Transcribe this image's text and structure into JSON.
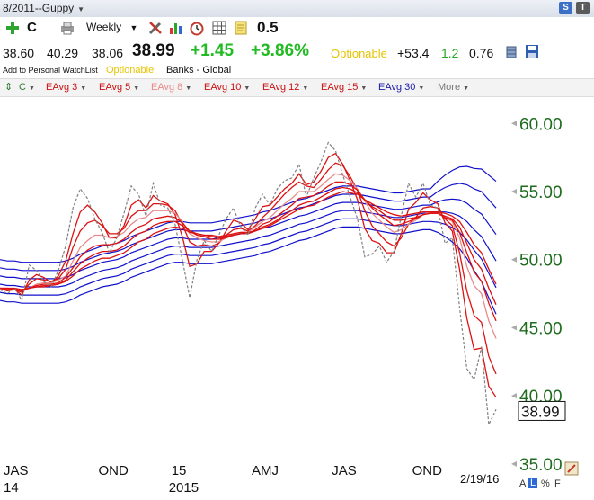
{
  "window": {
    "title": "8/2011--Guppy",
    "buttons": [
      {
        "label": "S",
        "color": "#3c6fc6"
      },
      {
        "label": "T",
        "color": "#5b5b5b"
      }
    ]
  },
  "toolbar": {
    "symbol": "C",
    "period": "Weekly",
    "value": "0.5"
  },
  "quote": {
    "open": "38.60",
    "high": "40.29",
    "low": "38.06",
    "last": "38.99",
    "change": "+1.45",
    "change_pct": "+3.86%",
    "optionable": "Optionable",
    "val1": "+53.4",
    "val2": "1.2",
    "val3": "0.76"
  },
  "subline": {
    "watchlist": "Add to Personal WatchList",
    "optionable": "Optionable",
    "sector": "Banks - Global"
  },
  "legend": [
    {
      "label": "C",
      "color": "#2b7a2b"
    },
    {
      "label": "EAvg 3",
      "color": "#cc1111"
    },
    {
      "label": "EAvg 5",
      "color": "#cc1111"
    },
    {
      "label": "EAvg 8",
      "color": "#e88a8a"
    },
    {
      "label": "EAvg 10",
      "color": "#cc1111"
    },
    {
      "label": "EAvg 12",
      "color": "#cc1111"
    },
    {
      "label": "EAvg 15",
      "color": "#cc1111"
    },
    {
      "label": "EAvg 30",
      "color": "#1a1aaa"
    },
    {
      "label": "More",
      "color": "#777777"
    }
  ],
  "colors": {
    "price": "#808080",
    "short": "#dd1111",
    "long": "#1111cc",
    "axis_text": "#1d6b1d"
  },
  "chart_data": {
    "type": "line",
    "ylim": [
      34,
      62
    ],
    "y_ticks": [
      35,
      40,
      45,
      50,
      55,
      60
    ],
    "y_tick_labels": [
      "35.00",
      "40.00",
      "45.00",
      "50.00",
      "55.00",
      "60.00"
    ],
    "last_price_label": "38.99",
    "last_price": 38.99,
    "x_ticks": [
      {
        "label": "JAS",
        "sub": "14",
        "week": 0
      },
      {
        "label": "OND",
        "sub": "",
        "week": 13
      },
      {
        "label": "15",
        "sub": "2015",
        "week": 23
      },
      {
        "label": "AMJ",
        "sub": "",
        "week": 34
      },
      {
        "label": "JAS",
        "sub": "",
        "week": 45
      },
      {
        "label": "OND",
        "sub": "",
        "week": 56
      }
    ],
    "date_label": "2/19/16",
    "price": [
      47.8,
      47.5,
      47.9,
      47.0,
      49.6,
      49.2,
      48.4,
      48.0,
      49.2,
      51.0,
      53.8,
      55.2,
      54.5,
      53.0,
      52.0,
      50.5,
      51.6,
      53.4,
      55.4,
      54.8,
      53.2,
      55.6,
      54.0,
      53.8,
      52.6,
      50.0,
      47.2,
      50.0,
      51.4,
      50.6,
      51.8,
      53.0,
      53.8,
      52.4,
      51.8,
      53.8,
      54.8,
      54.0,
      55.2,
      55.8,
      56.0,
      57.0,
      54.6,
      56.0,
      57.2,
      58.6,
      58.0,
      56.2,
      54.6,
      53.0,
      50.2,
      50.4,
      51.0,
      49.8,
      50.6,
      53.2,
      55.6,
      54.6,
      55.6,
      54.0,
      53.8,
      51.2,
      51.6,
      46.5,
      42.0,
      41.2,
      43.6,
      37.9,
      39.0
    ],
    "series": [
      {
        "name": "EAvg 3",
        "kind": "short",
        "values": [
          47.9,
          47.7,
          47.8,
          47.4,
          48.5,
          48.9,
          48.7,
          48.3,
          48.8,
          49.9,
          51.9,
          53.5,
          54.0,
          53.5,
          52.7,
          51.6,
          51.6,
          52.5,
          54.0,
          54.4,
          53.8,
          54.7,
          54.3,
          54.1,
          53.3,
          51.7,
          49.5,
          49.7,
          50.6,
          50.6,
          51.2,
          52.1,
          52.9,
          52.7,
          52.2,
          53.0,
          53.9,
          54.0,
          54.6,
          55.2,
          55.6,
          56.3,
          55.5,
          55.7,
          56.5,
          57.5,
          57.8,
          57.0,
          55.8,
          54.4,
          52.3,
          51.4,
          51.2,
          50.5,
          50.5,
          51.9,
          53.7,
          54.2,
          54.9,
          54.4,
          54.1,
          52.7,
          52.1,
          49.3,
          45.7,
          43.4,
          43.5,
          40.7,
          39.9
        ]
      },
      {
        "name": "EAvg 5",
        "kind": "short",
        "values": [
          47.9,
          47.8,
          47.8,
          47.6,
          48.2,
          48.6,
          48.5,
          48.4,
          48.6,
          49.3,
          50.9,
          52.1,
          52.7,
          52.9,
          52.5,
          51.9,
          51.9,
          52.3,
          53.2,
          53.6,
          53.6,
          54.1,
          54.1,
          54.0,
          53.6,
          52.6,
          51.3,
          51.0,
          51.1,
          51.0,
          51.2,
          51.8,
          52.2,
          52.3,
          52.1,
          52.5,
          53.1,
          53.6,
          54.2,
          54.8,
          55.3,
          55.7,
          55.4,
          55.3,
          55.9,
          56.6,
          57.1,
          56.9,
          56.1,
          55.1,
          53.6,
          52.5,
          51.9,
          51.3,
          51.0,
          51.6,
          52.6,
          53.1,
          53.8,
          53.9,
          53.8,
          53.0,
          52.5,
          50.5,
          47.7,
          45.9,
          45.4,
          42.9,
          41.6
        ]
      },
      {
        "name": "EAvg 8",
        "kind": "short",
        "values": [
          47.9,
          47.8,
          47.8,
          47.7,
          47.9,
          48.2,
          48.3,
          48.3,
          48.5,
          48.8,
          49.9,
          50.9,
          51.4,
          51.8,
          51.8,
          51.6,
          51.7,
          52.0,
          52.6,
          53.0,
          53.1,
          53.6,
          53.6,
          53.6,
          53.4,
          52.8,
          51.9,
          51.6,
          51.4,
          51.3,
          51.3,
          51.6,
          51.9,
          52.0,
          52.0,
          52.4,
          52.8,
          53.1,
          53.6,
          54.1,
          54.5,
          55.0,
          55.0,
          55.0,
          55.4,
          55.9,
          56.3,
          56.2,
          55.8,
          55.2,
          54.3,
          53.4,
          52.9,
          52.4,
          52.0,
          52.2,
          52.6,
          52.9,
          53.3,
          53.5,
          53.5,
          53.1,
          52.8,
          51.6,
          49.5,
          48.1,
          47.5,
          45.5,
          44.2
        ]
      },
      {
        "name": "EAvg 10",
        "kind": "short",
        "values": [
          47.9,
          47.8,
          47.8,
          47.7,
          47.9,
          48.1,
          48.2,
          48.2,
          48.3,
          48.7,
          49.4,
          50.2,
          50.7,
          51.0,
          51.1,
          51.1,
          51.2,
          51.5,
          52.0,
          52.4,
          52.6,
          53.0,
          53.1,
          53.2,
          53.1,
          52.7,
          52.1,
          51.8,
          51.7,
          51.5,
          51.5,
          51.6,
          51.8,
          51.9,
          51.9,
          52.2,
          52.6,
          52.8,
          53.2,
          53.6,
          54.0,
          54.5,
          54.6,
          54.7,
          55.0,
          55.4,
          55.7,
          55.7,
          55.5,
          55.1,
          54.4,
          53.8,
          53.3,
          52.9,
          52.5,
          52.6,
          52.8,
          53.0,
          53.3,
          53.4,
          53.4,
          53.1,
          52.9,
          52.0,
          50.5,
          49.1,
          48.4,
          46.8,
          45.5
        ]
      },
      {
        "name": "EAvg 12",
        "kind": "short",
        "values": [
          47.9,
          47.9,
          47.8,
          47.8,
          47.9,
          48.0,
          48.1,
          48.1,
          48.2,
          48.5,
          49.1,
          49.7,
          50.1,
          50.4,
          50.6,
          50.6,
          50.7,
          51.0,
          51.5,
          51.9,
          52.1,
          52.5,
          52.7,
          52.8,
          52.8,
          52.5,
          52.1,
          51.9,
          51.8,
          51.7,
          51.6,
          51.7,
          51.8,
          51.9,
          51.9,
          52.1,
          52.4,
          52.6,
          52.9,
          53.3,
          53.6,
          54.0,
          54.2,
          54.3,
          54.6,
          54.9,
          55.2,
          55.3,
          55.2,
          54.9,
          54.4,
          53.9,
          53.6,
          53.2,
          52.9,
          52.9,
          53.0,
          53.1,
          53.3,
          53.4,
          53.4,
          53.2,
          53.0,
          52.4,
          51.2,
          50.0,
          49.3,
          47.9,
          46.7
        ]
      },
      {
        "name": "EAvg 15",
        "kind": "short",
        "values": [
          47.9,
          47.9,
          47.9,
          47.8,
          47.9,
          48.0,
          48.0,
          48.1,
          48.2,
          48.4,
          48.8,
          49.3,
          49.6,
          49.9,
          50.1,
          50.1,
          50.3,
          50.5,
          50.9,
          51.3,
          51.5,
          51.9,
          52.1,
          52.3,
          52.4,
          52.3,
          52.0,
          51.9,
          51.8,
          51.8,
          51.7,
          51.8,
          51.9,
          52.0,
          52.0,
          52.1,
          52.3,
          52.5,
          52.8,
          53.1,
          53.4,
          53.7,
          53.9,
          54.0,
          54.3,
          54.6,
          54.8,
          55.0,
          54.9,
          54.8,
          54.4,
          54.1,
          53.8,
          53.5,
          53.3,
          53.2,
          53.3,
          53.4,
          53.5,
          53.5,
          53.5,
          53.4,
          53.2,
          52.8,
          52.0,
          51.1,
          50.5,
          49.3,
          48.2
        ]
      },
      {
        "name": "EAvg 30",
        "kind": "long",
        "values": [
          48.2,
          48.1,
          48.1,
          48.0,
          48.0,
          48.0,
          48.0,
          48.0,
          48.0,
          48.1,
          48.3,
          48.6,
          48.8,
          49.0,
          49.2,
          49.3,
          49.4,
          49.6,
          49.9,
          50.1,
          50.3,
          50.5,
          50.7,
          50.9,
          51.0,
          51.0,
          50.9,
          50.9,
          50.9,
          50.9,
          51.0,
          51.1,
          51.2,
          51.3,
          51.4,
          51.5,
          51.7,
          51.8,
          52.0,
          52.2,
          52.4,
          52.6,
          52.7,
          52.9,
          53.1,
          53.3,
          53.5,
          53.6,
          53.6,
          53.6,
          53.5,
          53.4,
          53.3,
          53.2,
          53.1,
          53.1,
          53.2,
          53.3,
          53.4,
          53.4,
          53.5,
          53.5,
          53.4,
          53.2,
          52.8,
          52.2,
          51.7,
          50.8,
          49.9
        ]
      }
    ]
  }
}
